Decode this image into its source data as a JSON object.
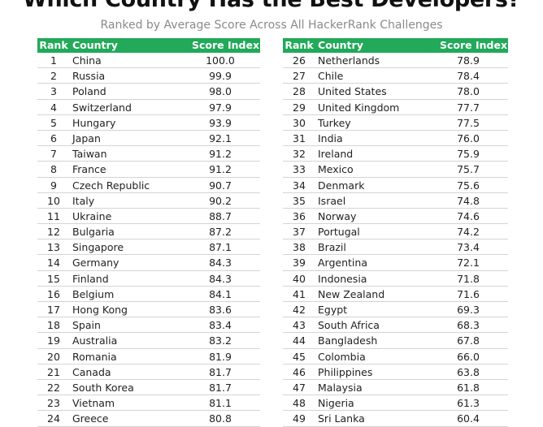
{
  "title": "Which Country Has the Best Developers?",
  "subtitle": "Ranked by Average Score Across All HackerRank Challenges",
  "colors": {
    "header_bg": "#22a95a",
    "header_text": "#ffffff",
    "row_divider": "#d4d4d4"
  },
  "chart_data": {
    "type": "table",
    "columns": [
      "Rank",
      "Country",
      "Score Index"
    ],
    "left_rows": [
      [
        1,
        "China",
        "100.0"
      ],
      [
        2,
        "Russia",
        "99.9"
      ],
      [
        3,
        "Poland",
        "98.0"
      ],
      [
        4,
        "Switzerland",
        "97.9"
      ],
      [
        5,
        "Hungary",
        "93.9"
      ],
      [
        6,
        "Japan",
        "92.1"
      ],
      [
        7,
        "Taiwan",
        "91.2"
      ],
      [
        8,
        "France",
        "91.2"
      ],
      [
        9,
        "Czech Republic",
        "90.7"
      ],
      [
        10,
        "Italy",
        "90.2"
      ],
      [
        11,
        "Ukraine",
        "88.7"
      ],
      [
        12,
        "Bulgaria",
        "87.2"
      ],
      [
        13,
        "Singapore",
        "87.1"
      ],
      [
        14,
        "Germany",
        "84.3"
      ],
      [
        15,
        "Finland",
        "84.3"
      ],
      [
        16,
        "Belgium",
        "84.1"
      ],
      [
        17,
        "Hong Kong",
        "83.6"
      ],
      [
        18,
        "Spain",
        "83.4"
      ],
      [
        19,
        "Australia",
        "83.2"
      ],
      [
        20,
        "Romania",
        "81.9"
      ],
      [
        21,
        "Canada",
        "81.7"
      ],
      [
        22,
        "South Korea",
        "81.7"
      ],
      [
        23,
        "Vietnam",
        "81.1"
      ],
      [
        24,
        "Greece",
        "80.8"
      ]
    ],
    "right_rows": [
      [
        26,
        "Netherlands",
        "78.9"
      ],
      [
        27,
        "Chile",
        "78.4"
      ],
      [
        28,
        "United States",
        "78.0"
      ],
      [
        29,
        "United Kingdom",
        "77.7"
      ],
      [
        30,
        "Turkey",
        "77.5"
      ],
      [
        31,
        "India",
        "76.0"
      ],
      [
        32,
        "Ireland",
        "75.9"
      ],
      [
        33,
        "Mexico",
        "75.7"
      ],
      [
        34,
        "Denmark",
        "75.6"
      ],
      [
        35,
        "Israel",
        "74.8"
      ],
      [
        36,
        "Norway",
        "74.6"
      ],
      [
        37,
        "Portugal",
        "74.2"
      ],
      [
        38,
        "Brazil",
        "73.4"
      ],
      [
        39,
        "Argentina",
        "72.1"
      ],
      [
        40,
        "Indonesia",
        "71.8"
      ],
      [
        41,
        "New Zealand",
        "71.6"
      ],
      [
        42,
        "Egypt",
        "69.3"
      ],
      [
        43,
        "South Africa",
        "68.3"
      ],
      [
        44,
        "Bangladesh",
        "67.8"
      ],
      [
        45,
        "Colombia",
        "66.0"
      ],
      [
        46,
        "Philippines",
        "63.8"
      ],
      [
        47,
        "Malaysia",
        "61.8"
      ],
      [
        48,
        "Nigeria",
        "61.3"
      ],
      [
        49,
        "Sri Lanka",
        "60.4"
      ]
    ]
  }
}
